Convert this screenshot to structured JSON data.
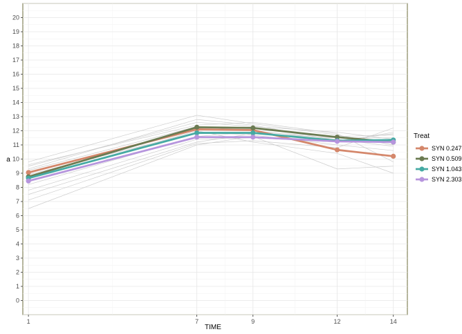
{
  "chart_data": {
    "type": "line",
    "title": "",
    "xlabel": "TIME",
    "ylabel": "a",
    "x": [
      1,
      7,
      9,
      12,
      14
    ],
    "x_ticks": [
      "1",
      "7",
      "9",
      "12",
      "14"
    ],
    "xlim": [
      0.8,
      14.5
    ],
    "ylim": [
      -1,
      21
    ],
    "y_ticks": [
      0,
      1,
      2,
      3,
      4,
      5,
      6,
      7,
      8,
      9,
      10,
      11,
      12,
      13,
      14,
      15,
      16,
      17,
      18,
      19,
      20
    ],
    "grid": true,
    "legend": {
      "title": "Treat",
      "position": "right"
    },
    "series": [
      {
        "name": "SYN 0.247",
        "color": "#d4876b",
        "values": [
          9.05,
          12.1,
          12.05,
          10.65,
          10.2
        ]
      },
      {
        "name": "SYN 0.509",
        "color": "#6b7b52",
        "values": [
          8.75,
          12.25,
          12.2,
          11.55,
          11.2
        ]
      },
      {
        "name": "SYN 1.043",
        "color": "#45aaa3",
        "values": [
          8.65,
          11.85,
          11.85,
          11.3,
          11.35
        ]
      },
      {
        "name": "SYN 2.303",
        "color": "#b695dd",
        "values": [
          8.45,
          11.55,
          11.55,
          11.25,
          11.2
        ]
      }
    ],
    "background_series": [
      [
        9.5,
        12.6,
        12.3,
        11.9,
        11.4
      ],
      [
        9.8,
        13.1,
        12.5,
        11.7,
        11.0
      ],
      [
        9.2,
        12.3,
        12.0,
        11.4,
        10.9
      ],
      [
        8.9,
        11.9,
        11.7,
        11.0,
        10.6
      ],
      [
        8.2,
        11.6,
        11.9,
        11.6,
        11.7
      ],
      [
        7.8,
        11.4,
        11.5,
        11.2,
        11.9
      ],
      [
        7.1,
        11.1,
        11.3,
        10.8,
        12.2
      ],
      [
        6.5,
        11.0,
        11.6,
        9.3,
        9.5
      ],
      [
        9.6,
        12.4,
        12.6,
        11.8,
        9.8
      ],
      [
        8.6,
        12.0,
        11.2,
        10.4,
        9.0
      ],
      [
        9.3,
        12.8,
        12.4,
        11.3,
        11.8
      ],
      [
        7.5,
        11.2,
        11.8,
        11.5,
        11.5
      ]
    ]
  }
}
